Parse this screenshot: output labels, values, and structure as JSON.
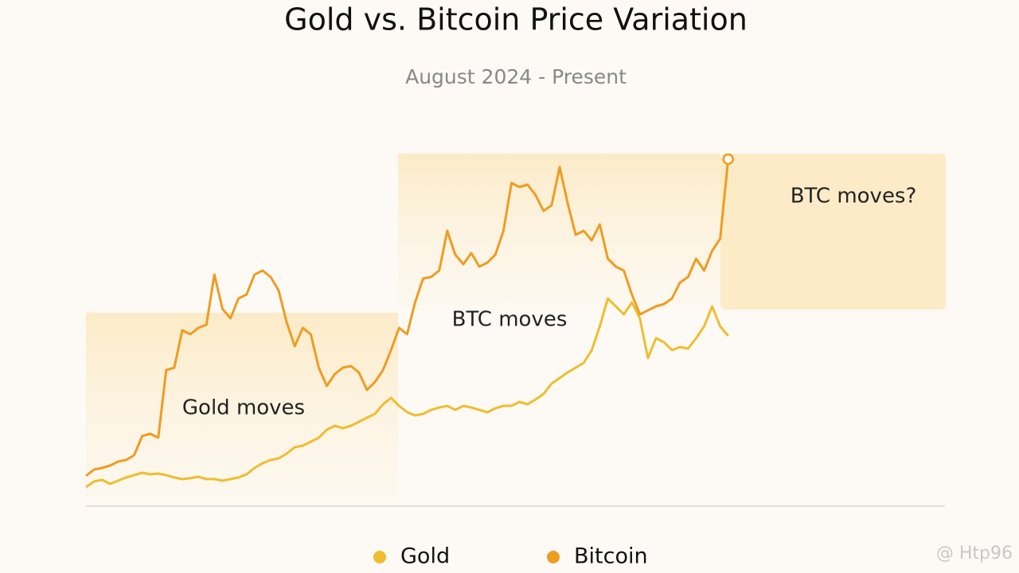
{
  "chart_data": {
    "type": "line",
    "title": "Gold vs. Bitcoin Price Variation",
    "subtitle": "August 2024 - Present",
    "xlim": [
      0,
      107
    ],
    "ylim": [
      0,
      446
    ],
    "annotations": [
      "Gold moves",
      "BTC moves",
      "BTC moves?"
    ],
    "watermark": "@ Htp96",
    "series": [
      {
        "name": "Gold",
        "color": "#efbd2f",
        "values": [
          24,
          31,
          33,
          28,
          32,
          36,
          39,
          42,
          40,
          41,
          39,
          36,
          34,
          35,
          37,
          34,
          34,
          32,
          34,
          36,
          40,
          48,
          54,
          58,
          60,
          66,
          74,
          76,
          81,
          86,
          96,
          101,
          98,
          101,
          106,
          111,
          116,
          128,
          136,
          126,
          118,
          114,
          116,
          121,
          124,
          126,
          121,
          126,
          124,
          121,
          118,
          123,
          126,
          126,
          131,
          128,
          134,
          141,
          154,
          161,
          168,
          174,
          180,
          196,
          226,
          261,
          251,
          241,
          256,
          236,
          186,
          211,
          206,
          196,
          200,
          198,
          211,
          226,
          251,
          226,
          214
        ]
      },
      {
        "name": "Bitcoin",
        "color": "#ef9c22",
        "values": [
          38,
          46,
          48,
          51,
          56,
          58,
          64,
          88,
          91,
          86,
          171,
          174,
          221,
          216,
          224,
          228,
          291,
          248,
          236,
          261,
          266,
          291,
          296,
          288,
          271,
          231,
          201,
          224,
          216,
          174,
          151,
          166,
          174,
          176,
          168,
          146,
          156,
          171,
          196,
          224,
          216,
          256,
          286,
          288,
          296,
          346,
          316,
          304,
          318,
          301,
          306,
          316,
          346,
          406,
          401,
          404,
          391,
          371,
          378,
          426,
          381,
          341,
          346,
          334,
          354,
          311,
          301,
          296,
          266,
          241,
          246,
          251,
          254,
          261,
          281,
          288,
          311,
          296,
          321,
          336,
          436
        ]
      }
    ]
  }
}
